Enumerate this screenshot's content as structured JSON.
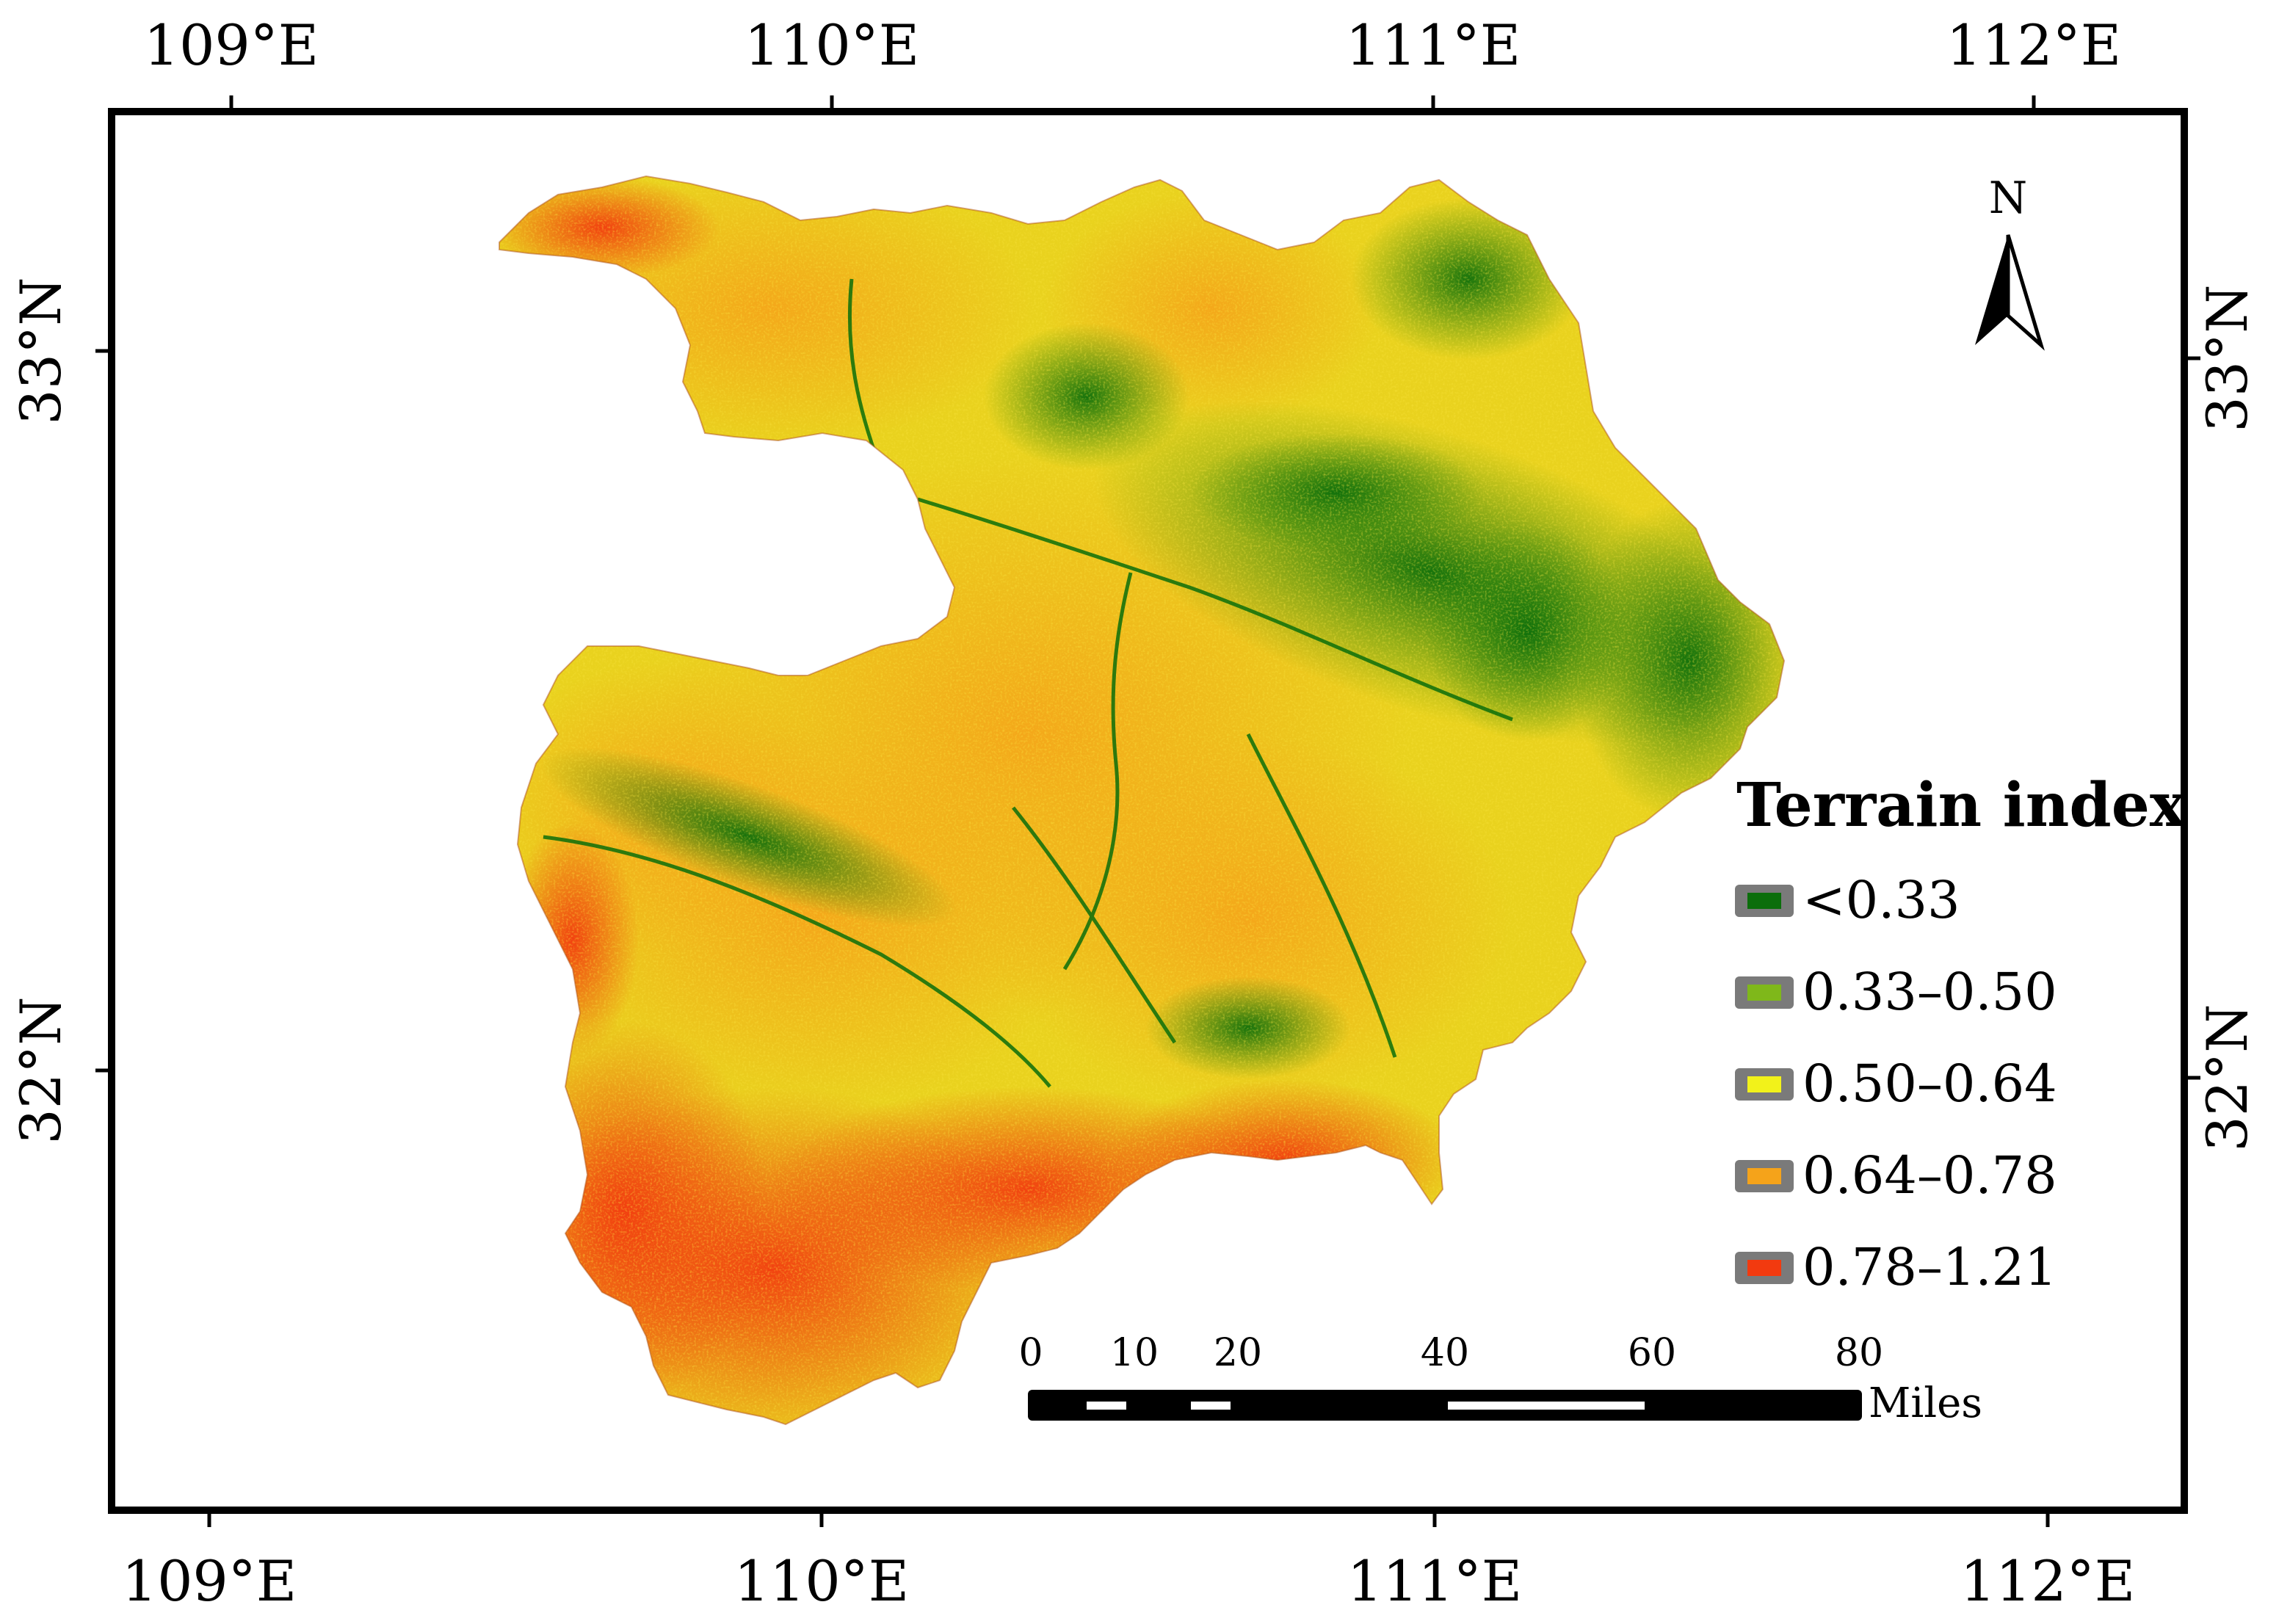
{
  "map": {
    "lon_ticks_top": [
      "109°E",
      "110°E",
      "111°E",
      "112°E"
    ],
    "lon_ticks_bottom": [
      "109°E",
      "110°E",
      "111°E",
      "112°E"
    ],
    "lat_ticks_left": [
      "33°N",
      "32°N"
    ],
    "lat_ticks_right": [
      "33°N",
      "32°N"
    ],
    "north_label": "N",
    "legend": {
      "title": "Terrain index",
      "classes": [
        {
          "label": "<0.33",
          "color": "#0b6e0b"
        },
        {
          "label": "0.33–0.50",
          "color": "#7fb81a"
        },
        {
          "label": "0.50–0.64",
          "color": "#f2f21a"
        },
        {
          "label": "0.64–0.78",
          "color": "#f5a31a"
        },
        {
          "label": "0.78–1.21",
          "color": "#f23a0f"
        }
      ]
    },
    "scale_bar": {
      "labels": [
        "0",
        "10",
        "20",
        "40",
        "60",
        "80"
      ],
      "unit": "Miles"
    }
  }
}
